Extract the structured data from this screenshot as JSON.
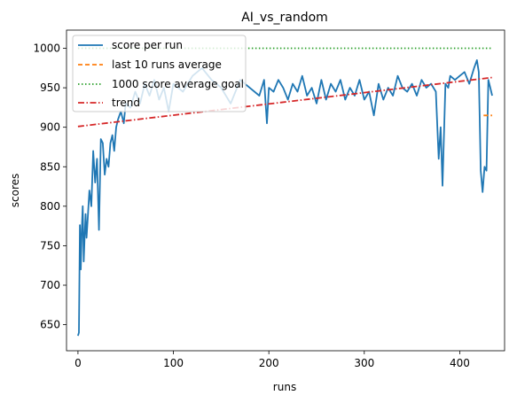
{
  "chart_data": {
    "type": "line",
    "title": "AI_vs_random",
    "xlabel": "runs",
    "ylabel": "scores",
    "xlim": [
      -12,
      447
    ],
    "ylim": [
      617,
      1023
    ],
    "xticks": [
      0,
      100,
      200,
      300,
      400
    ],
    "xtick_labels": [
      "0",
      "100",
      "200",
      "300",
      "400"
    ],
    "yticks": [
      650,
      700,
      750,
      800,
      850,
      900,
      950,
      1000
    ],
    "ytick_labels": [
      "650",
      "700",
      "750",
      "800",
      "850",
      "900",
      "950",
      "1000"
    ],
    "grid": false,
    "legend_position": "top-left",
    "series": [
      {
        "name": "score per run",
        "style": "solid",
        "color": "#1f77b4",
        "x": [
          0,
          1,
          2,
          3,
          4,
          5,
          6,
          7,
          8,
          9,
          10,
          12,
          14,
          16,
          18,
          20,
          22,
          24,
          26,
          28,
          30,
          32,
          34,
          36,
          38,
          40,
          42,
          45,
          48,
          50,
          55,
          60,
          65,
          70,
          75,
          80,
          85,
          90,
          95,
          100,
          110,
          120,
          130,
          140,
          150,
          160,
          170,
          180,
          190,
          195,
          198,
          200,
          205,
          210,
          215,
          220,
          225,
          230,
          235,
          240,
          245,
          250,
          255,
          260,
          265,
          270,
          275,
          280,
          285,
          290,
          295,
          300,
          305,
          310,
          315,
          320,
          325,
          330,
          335,
          340,
          345,
          350,
          355,
          360,
          365,
          370,
          375,
          378,
          380,
          382,
          385,
          388,
          390,
          395,
          400,
          405,
          410,
          415,
          418,
          420,
          422,
          424,
          426,
          428,
          430,
          432,
          434
        ],
        "y": [
          636,
          640,
          776,
          720,
          770,
          800,
          730,
          760,
          790,
          760,
          780,
          820,
          800,
          870,
          830,
          860,
          770,
          885,
          880,
          840,
          860,
          850,
          880,
          890,
          870,
          900,
          910,
          920,
          905,
          930,
          925,
          945,
          930,
          955,
          940,
          960,
          935,
          950,
          920,
          955,
          945,
          965,
          975,
          960,
          950,
          930,
          960,
          950,
          940,
          960,
          905,
          950,
          945,
          960,
          950,
          935,
          955,
          945,
          965,
          940,
          950,
          930,
          960,
          935,
          955,
          945,
          960,
          935,
          950,
          940,
          960,
          935,
          945,
          915,
          955,
          935,
          950,
          940,
          965,
          950,
          945,
          955,
          940,
          960,
          950,
          955,
          945,
          860,
          900,
          826,
          955,
          950,
          965,
          960,
          965,
          970,
          955,
          975,
          985,
          970,
          845,
          818,
          850,
          845,
          960,
          950,
          940
        ]
      },
      {
        "name": "last 10 runs average",
        "style": "dashed",
        "color": "#ff7f0e",
        "x": [
          425,
          434
        ],
        "y": [
          915,
          915
        ]
      },
      {
        "name": "1000 score average goal",
        "style": "dotted",
        "color": "#2ca02c",
        "x": [
          0,
          434
        ],
        "y": [
          1000,
          1000
        ]
      },
      {
        "name": "trend",
        "style": "dashdot",
        "color": "#d62728",
        "x": [
          0,
          434
        ],
        "y": [
          901,
          963
        ]
      }
    ]
  }
}
